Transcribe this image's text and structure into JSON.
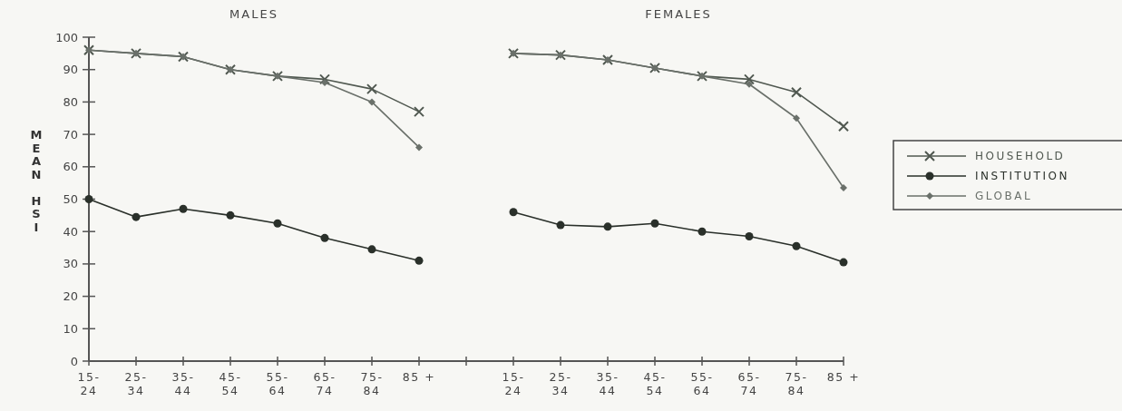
{
  "chart_data": {
    "type": "line",
    "ylabel": "MEAN HSI",
    "annotations": [
      "MALES",
      "FEMALES"
    ],
    "categories": [
      "15-\n24",
      "25-\n34",
      "35-\n44",
      "45-\n54",
      "55-\n64",
      "65-\n74",
      "75-\n84",
      "85 +",
      null,
      "15-\n24",
      "25-\n34",
      "35-\n44",
      "45-\n54",
      "55-\n64",
      "65-\n74",
      "75-\n84",
      "85 +"
    ],
    "series": [
      {
        "name": "HOUSEHOLD",
        "color": "#505850",
        "marker": "cross",
        "values": [
          96,
          95,
          94,
          90,
          88,
          87,
          84,
          77,
          null,
          95,
          94.5,
          93,
          90.5,
          88,
          87,
          83,
          72.5
        ]
      },
      {
        "name": "INSTITUTION",
        "color": "#2a302a",
        "marker": "circle",
        "values": [
          50,
          44.5,
          47,
          45,
          42.5,
          38,
          34.5,
          31,
          null,
          46,
          42,
          41.5,
          42.5,
          40,
          38.5,
          35.5,
          30.5
        ]
      },
      {
        "name": "GLOBAL",
        "color": "#6a706a",
        "marker": "diamond",
        "values": [
          96,
          95,
          94,
          90,
          88,
          86,
          80,
          66,
          null,
          95,
          94.5,
          93,
          90.5,
          88,
          85.5,
          75,
          53.5
        ]
      }
    ],
    "ylim": [
      0,
      100
    ],
    "yticks": [
      0,
      10,
      20,
      30,
      40,
      50,
      60,
      70,
      80,
      90,
      100
    ],
    "grid": false,
    "legend": "right",
    "line_style": "solid"
  }
}
